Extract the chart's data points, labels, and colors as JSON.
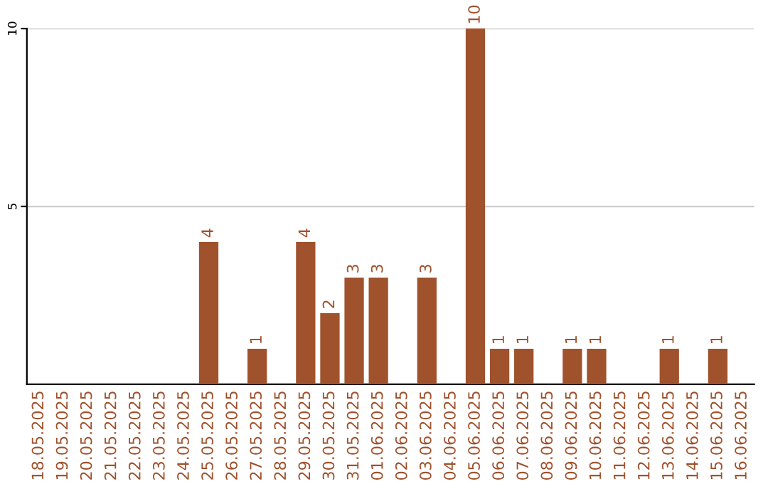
{
  "chart_data": {
    "type": "bar",
    "categories": [
      "18.05.2025",
      "19.05.2025",
      "20.05.2025",
      "21.05.2025",
      "22.05.2025",
      "23.05.2025",
      "24.05.2025",
      "25.05.2025",
      "26.05.2025",
      "27.05.2025",
      "28.05.2025",
      "29.05.2025",
      "30.05.2025",
      "31.05.2025",
      "01.06.2025",
      "02.06.2025",
      "03.06.2025",
      "04.06.2025",
      "05.06.2025",
      "06.06.2025",
      "07.06.2025",
      "08.06.2025",
      "09.06.2025",
      "10.06.2025",
      "11.06.2025",
      "12.06.2025",
      "13.06.2025",
      "14.06.2025",
      "15.06.2025",
      "16.06.2025"
    ],
    "values": [
      0,
      0,
      0,
      0,
      0,
      0,
      0,
      4,
      0,
      1,
      0,
      4,
      2,
      3,
      3,
      0,
      3,
      0,
      10,
      1,
      1,
      0,
      1,
      1,
      0,
      0,
      1,
      0,
      1,
      0
    ],
    "value_labels": [
      null,
      null,
      null,
      null,
      null,
      null,
      null,
      "4",
      null,
      "1",
      null,
      "4",
      "2",
      "3",
      "3",
      null,
      "3",
      null,
      "10",
      "1",
      "1",
      null,
      "1",
      "1",
      null,
      null,
      "1",
      null,
      "1",
      null
    ],
    "color": "#a0522d",
    "ylim": [
      0,
      10
    ],
    "yticks": [
      5,
      10
    ],
    "grid": "y"
  }
}
